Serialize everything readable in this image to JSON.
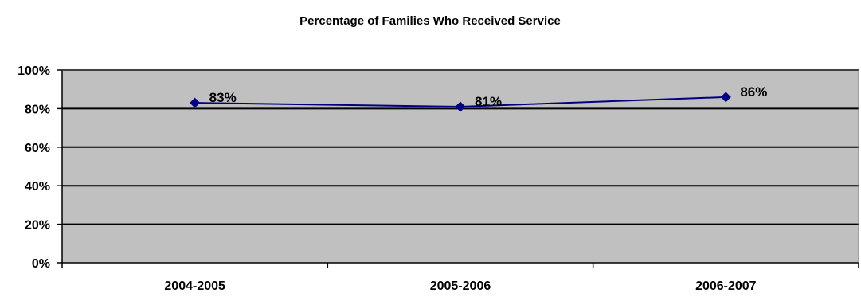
{
  "chart_data": {
    "type": "line",
    "title": "Percentage of Families Who Received Service",
    "xlabel": "",
    "ylabel": "",
    "categories": [
      "2004-2005",
      "2005-2006",
      "2006-2007"
    ],
    "series": [
      {
        "values": [
          83,
          81,
          86
        ],
        "data_labels": [
          "83%",
          "81%",
          "86%"
        ]
      }
    ],
    "ylim": [
      0,
      100
    ],
    "y_ticks": [
      0,
      20,
      40,
      60,
      80,
      100
    ],
    "y_tick_labels": [
      "0%",
      "20%",
      "40%",
      "60%",
      "80%",
      "100%"
    ],
    "grid": true,
    "legend": "none",
    "colors": {
      "plot_background": "#c0c0c0",
      "line": "#000080",
      "marker": "#000080",
      "gridline": "#000000"
    },
    "marker": "diamond-icon"
  }
}
